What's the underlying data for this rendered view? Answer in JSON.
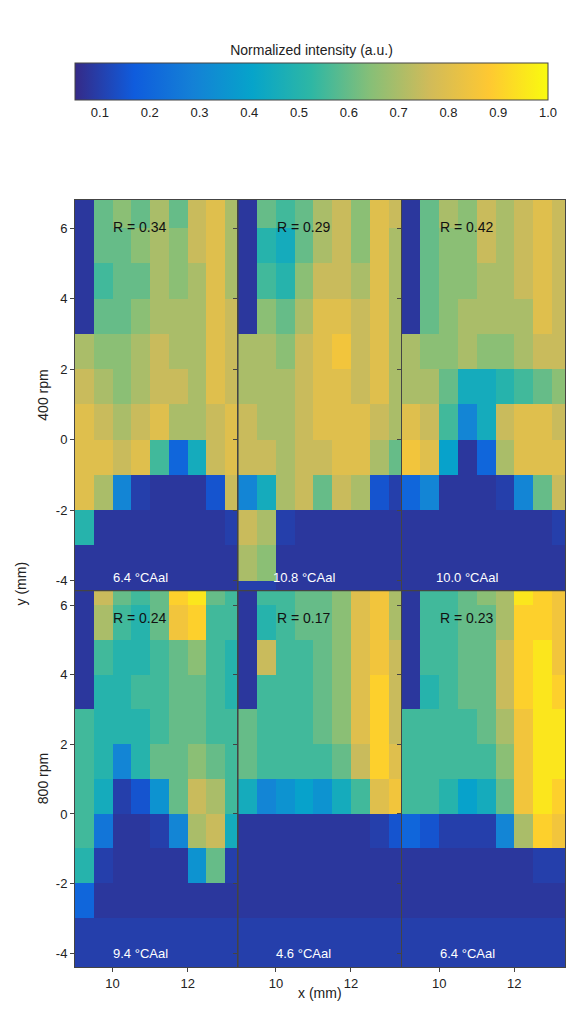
{
  "chart_data": {
    "type": "heatmap",
    "x_label": "x (mm)",
    "y_label": "y (mm)",
    "colorbar": {
      "title": "Normalized intensity (a.u.)",
      "range": [
        0.05,
        1.0
      ],
      "ticks": [
        0.1,
        0.2,
        0.3,
        0.4,
        0.5,
        0.6,
        0.7,
        0.8,
        0.9,
        {
          "value": 1.0,
          "label": "1.0"
        }
      ]
    },
    "x": [
      9.25,
      9.75,
      10.25,
      10.75,
      11.25,
      11.75,
      12.25,
      12.75,
      13.25
    ],
    "y": [
      6.5,
      5.5,
      4.5,
      3.5,
      2.5,
      1.5,
      0.5,
      -0.5,
      -1.5,
      -2.5,
      -3.5,
      -4.5
    ],
    "xlim": [
      9.0,
      13.35
    ],
    "xticks": [
      10,
      12
    ],
    "rows": [
      {
        "label": "400 rpm",
        "ylim": [
          -4.3,
          6.8
        ],
        "yticks": [
          -4,
          -2,
          0,
          2,
          4,
          6
        ],
        "panels": [
          {
            "annotations": [
              "R = 0.34",
              "6.4 °CAal"
            ],
            "z": [
              [
                0.08,
                0.6,
                0.65,
                0.6,
                0.7,
                0.6,
                0.75,
                0.8,
                0.7
              ],
              [
                0.08,
                0.6,
                0.6,
                0.65,
                0.7,
                0.65,
                0.75,
                0.8,
                0.7
              ],
              [
                0.08,
                0.55,
                0.6,
                0.6,
                0.7,
                0.65,
                0.7,
                0.8,
                0.7
              ],
              [
                0.08,
                0.6,
                0.6,
                0.65,
                0.7,
                0.7,
                0.7,
                0.8,
                0.75
              ],
              [
                0.7,
                0.65,
                0.65,
                0.7,
                0.75,
                0.7,
                0.7,
                0.8,
                0.75
              ],
              [
                0.75,
                0.7,
                0.65,
                0.7,
                0.75,
                0.75,
                0.7,
                0.8,
                0.75
              ],
              [
                0.8,
                0.75,
                0.7,
                0.75,
                0.8,
                0.7,
                0.7,
                0.75,
                0.8
              ],
              [
                0.8,
                0.8,
                0.75,
                0.8,
                0.55,
                0.2,
                0.45,
                0.75,
                0.8
              ],
              [
                0.8,
                0.7,
                0.3,
                0.1,
                0.08,
                0.08,
                0.08,
                0.15,
                0.75
              ],
              [
                0.5,
                0.08,
                0.08,
                0.08,
                0.08,
                0.08,
                0.08,
                0.08,
                0.1
              ],
              [
                0.08,
                0.08,
                0.08,
                0.08,
                0.08,
                0.08,
                0.08,
                0.08,
                0.08
              ],
              [
                0.08,
                0.08,
                0.08,
                0.08,
                0.08,
                0.08,
                0.08,
                0.08,
                0.08
              ]
            ]
          },
          {
            "annotations": [
              "R = 0.29",
              "10.8 °CAal"
            ],
            "z": [
              [
                0.08,
                0.6,
                0.55,
                0.6,
                0.7,
                0.75,
                0.65,
                0.8,
                0.75
              ],
              [
                0.08,
                0.5,
                0.45,
                0.6,
                0.7,
                0.75,
                0.65,
                0.8,
                0.7
              ],
              [
                0.08,
                0.55,
                0.5,
                0.65,
                0.75,
                0.75,
                0.7,
                0.8,
                0.7
              ],
              [
                0.08,
                0.65,
                0.6,
                0.7,
                0.8,
                0.8,
                0.75,
                0.8,
                0.7
              ],
              [
                0.7,
                0.7,
                0.65,
                0.75,
                0.8,
                0.85,
                0.75,
                0.8,
                0.7
              ],
              [
                0.7,
                0.7,
                0.7,
                0.75,
                0.8,
                0.8,
                0.75,
                0.8,
                0.7
              ],
              [
                0.75,
                0.7,
                0.7,
                0.75,
                0.8,
                0.8,
                0.8,
                0.75,
                0.7
              ],
              [
                0.75,
                0.75,
                0.7,
                0.75,
                0.75,
                0.8,
                0.8,
                0.7,
                0.6
              ],
              [
                0.3,
                0.45,
                0.7,
                0.75,
                0.6,
                0.75,
                0.7,
                0.15,
                0.1
              ],
              [
                0.75,
                0.7,
                0.1,
                0.08,
                0.08,
                0.08,
                0.08,
                0.08,
                0.08
              ],
              [
                0.7,
                0.65,
                0.08,
                0.08,
                0.08,
                0.08,
                0.08,
                0.08,
                0.08
              ],
              [
                0.1,
                0.1,
                0.08,
                0.08,
                0.08,
                0.08,
                0.08,
                0.08,
                0.08
              ]
            ]
          },
          {
            "annotations": [
              "R = 0.42",
              "10.0 °CAal"
            ],
            "z": [
              [
                0.08,
                0.6,
                0.7,
                0.65,
                0.75,
                0.7,
                0.75,
                0.8,
                0.75
              ],
              [
                0.08,
                0.6,
                0.65,
                0.65,
                0.75,
                0.7,
                0.75,
                0.8,
                0.75
              ],
              [
                0.08,
                0.6,
                0.65,
                0.65,
                0.7,
                0.7,
                0.75,
                0.8,
                0.75
              ],
              [
                0.08,
                0.6,
                0.65,
                0.7,
                0.7,
                0.7,
                0.7,
                0.8,
                0.75
              ],
              [
                0.7,
                0.65,
                0.65,
                0.7,
                0.65,
                0.65,
                0.7,
                0.75,
                0.75
              ],
              [
                0.7,
                0.7,
                0.6,
                0.45,
                0.45,
                0.5,
                0.55,
                0.6,
                0.65
              ],
              [
                0.8,
                0.75,
                0.55,
                0.3,
                0.45,
                0.75,
                0.8,
                0.8,
                0.75
              ],
              [
                0.85,
                0.8,
                0.4,
                0.08,
                0.2,
                0.7,
                0.8,
                0.8,
                0.8
              ],
              [
                0.2,
                0.3,
                0.08,
                0.08,
                0.08,
                0.1,
                0.3,
                0.6,
                0.75
              ],
              [
                0.08,
                0.08,
                0.08,
                0.08,
                0.08,
                0.08,
                0.08,
                0.08,
                0.1
              ],
              [
                0.08,
                0.08,
                0.08,
                0.08,
                0.08,
                0.08,
                0.08,
                0.08,
                0.08
              ],
              [
                0.08,
                0.08,
                0.08,
                0.08,
                0.08,
                0.08,
                0.08,
                0.08,
                0.08
              ]
            ]
          }
        ]
      },
      {
        "label": "800 rpm",
        "ylim": [
          -4.4,
          6.4
        ],
        "yticks": [
          -4,
          -2,
          0,
          2,
          4,
          6
        ],
        "panels": [
          {
            "annotations": [
              "R = 0.24",
              "9.4 °CAal"
            ],
            "z": [
              [
                0.08,
                0.75,
                0.6,
                0.55,
                0.6,
                0.9,
                0.95,
                0.6,
                0.55
              ],
              [
                0.08,
                0.7,
                0.55,
                0.5,
                0.6,
                0.85,
                0.9,
                0.55,
                0.55
              ],
              [
                0.08,
                0.55,
                0.5,
                0.5,
                0.55,
                0.6,
                0.65,
                0.55,
                0.5
              ],
              [
                0.08,
                0.5,
                0.5,
                0.55,
                0.55,
                0.6,
                0.6,
                0.55,
                0.5
              ],
              [
                0.55,
                0.5,
                0.5,
                0.5,
                0.55,
                0.6,
                0.6,
                0.55,
                0.55
              ],
              [
                0.55,
                0.5,
                0.3,
                0.5,
                0.6,
                0.6,
                0.65,
                0.6,
                0.55
              ],
              [
                0.55,
                0.45,
                0.1,
                0.15,
                0.35,
                0.6,
                0.75,
                0.7,
                0.55
              ],
              [
                0.55,
                0.25,
                0.08,
                0.08,
                0.1,
                0.3,
                0.7,
                0.75,
                0.45
              ],
              [
                0.5,
                0.1,
                0.08,
                0.08,
                0.08,
                0.08,
                0.35,
                0.6,
                0.1
              ],
              [
                0.2,
                0.08,
                0.08,
                0.08,
                0.08,
                0.08,
                0.08,
                0.08,
                0.08
              ],
              [
                0.1,
                0.1,
                0.1,
                0.1,
                0.1,
                0.1,
                0.1,
                0.1,
                0.1
              ],
              [
                0.1,
                0.1,
                0.1,
                0.1,
                0.1,
                0.1,
                0.1,
                0.1,
                0.1
              ]
            ]
          },
          {
            "annotations": [
              "R = 0.17",
              "4.6 °CAal"
            ],
            "z": [
              [
                0.08,
                0.55,
                0.55,
                0.6,
                0.6,
                0.65,
                0.8,
                0.85,
                0.7
              ],
              [
                0.08,
                0.5,
                0.55,
                0.6,
                0.6,
                0.65,
                0.8,
                0.85,
                0.7
              ],
              [
                0.08,
                0.75,
                0.55,
                0.55,
                0.6,
                0.65,
                0.8,
                0.85,
                0.75
              ],
              [
                0.08,
                0.55,
                0.55,
                0.55,
                0.6,
                0.65,
                0.8,
                0.9,
                0.75
              ],
              [
                0.6,
                0.55,
                0.55,
                0.55,
                0.6,
                0.65,
                0.8,
                0.9,
                0.75
              ],
              [
                0.6,
                0.55,
                0.55,
                0.55,
                0.55,
                0.6,
                0.75,
                0.9,
                0.8
              ],
              [
                0.45,
                0.3,
                0.35,
                0.4,
                0.35,
                0.45,
                0.55,
                0.8,
                0.85
              ],
              [
                0.08,
                0.08,
                0.08,
                0.08,
                0.08,
                0.08,
                0.08,
                0.1,
                0.15
              ],
              [
                0.08,
                0.08,
                0.08,
                0.08,
                0.08,
                0.08,
                0.08,
                0.08,
                0.08
              ],
              [
                0.08,
                0.08,
                0.08,
                0.08,
                0.08,
                0.08,
                0.08,
                0.08,
                0.08
              ],
              [
                0.1,
                0.1,
                0.1,
                0.1,
                0.1,
                0.1,
                0.1,
                0.1,
                0.1
              ],
              [
                0.1,
                0.1,
                0.1,
                0.1,
                0.1,
                0.1,
                0.1,
                0.1,
                0.1
              ]
            ]
          },
          {
            "annotations": [
              "R = 0.23",
              "6.4 °CAal"
            ],
            "z": [
              [
                0.08,
                0.55,
                0.55,
                0.6,
                0.65,
                0.7,
                0.95,
                0.9,
                0.85
              ],
              [
                0.08,
                0.55,
                0.55,
                0.6,
                0.6,
                0.7,
                0.9,
                0.9,
                0.85
              ],
              [
                0.08,
                0.55,
                0.55,
                0.6,
                0.6,
                0.75,
                0.9,
                0.95,
                0.85
              ],
              [
                0.08,
                0.5,
                0.55,
                0.6,
                0.6,
                0.75,
                0.9,
                0.95,
                0.9
              ],
              [
                0.55,
                0.55,
                0.55,
                0.55,
                0.6,
                0.7,
                0.85,
                0.95,
                0.95
              ],
              [
                0.55,
                0.55,
                0.55,
                0.55,
                0.55,
                0.65,
                0.85,
                0.95,
                0.95
              ],
              [
                0.55,
                0.55,
                0.5,
                0.4,
                0.45,
                0.6,
                0.85,
                0.95,
                0.9
              ],
              [
                0.2,
                0.15,
                0.1,
                0.1,
                0.1,
                0.3,
                0.7,
                0.9,
                0.85
              ],
              [
                0.08,
                0.08,
                0.08,
                0.08,
                0.08,
                0.08,
                0.08,
                0.1,
                0.1
              ],
              [
                0.08,
                0.08,
                0.08,
                0.08,
                0.08,
                0.08,
                0.08,
                0.08,
                0.08
              ],
              [
                0.1,
                0.1,
                0.1,
                0.1,
                0.1,
                0.1,
                0.1,
                0.1,
                0.1
              ],
              [
                0.1,
                0.1,
                0.1,
                0.1,
                0.1,
                0.1,
                0.1,
                0.1,
                0.1
              ]
            ]
          }
        ]
      }
    ]
  }
}
